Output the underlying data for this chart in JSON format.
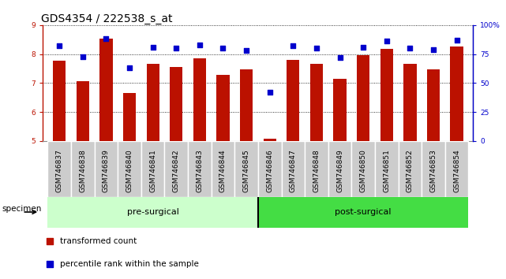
{
  "title": "GDS4354 / 222538_s_at",
  "samples": [
    "GSM746837",
    "GSM746838",
    "GSM746839",
    "GSM746840",
    "GSM746841",
    "GSM746842",
    "GSM746843",
    "GSM746844",
    "GSM746845",
    "GSM746846",
    "GSM746847",
    "GSM746848",
    "GSM746849",
    "GSM746850",
    "GSM746851",
    "GSM746852",
    "GSM746853",
    "GSM746854"
  ],
  "bar_values": [
    7.78,
    7.06,
    8.52,
    6.65,
    7.65,
    7.54,
    7.85,
    7.28,
    7.48,
    5.08,
    7.8,
    7.65,
    7.15,
    7.95,
    8.18,
    7.65,
    7.48,
    8.27
  ],
  "dot_values": [
    82,
    73,
    88,
    63,
    81,
    80,
    83,
    80,
    78,
    42,
    82,
    80,
    72,
    81,
    86,
    80,
    79,
    87
  ],
  "ylim_left": [
    5,
    9
  ],
  "ylim_right": [
    0,
    100
  ],
  "yticks_left": [
    5,
    6,
    7,
    8,
    9
  ],
  "yticks_right": [
    0,
    25,
    50,
    75,
    100
  ],
  "ytick_labels_right": [
    "0",
    "25",
    "50",
    "75",
    "100%"
  ],
  "bar_color": "#bb1100",
  "dot_color": "#0000cc",
  "bar_bottom": 5,
  "group1_label": "pre-surgical",
  "group2_label": "post-surgical",
  "group1_count": 9,
  "group2_count": 9,
  "group1_color": "#ccffcc",
  "group2_color": "#44dd44",
  "specimen_label": "specimen",
  "legend_bar_label": "transformed count",
  "legend_dot_label": "percentile rank within the sample",
  "title_fontsize": 10,
  "tick_fontsize": 6.5,
  "sample_tick_fontsize": 6.5,
  "grid_style": "dotted",
  "background_color": "#ffffff",
  "cell_color": "#cccccc",
  "cell_border_color": "#ffffff"
}
